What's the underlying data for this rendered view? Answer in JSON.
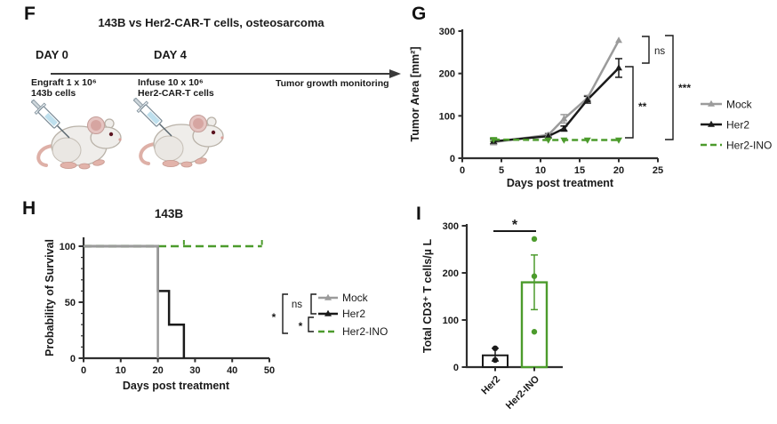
{
  "panels": {
    "f": {
      "letter": "F",
      "title": "143B vs Her2-CAR-T cells, osteosarcoma",
      "day0_label": "DAY 0",
      "day4_label": "DAY 4",
      "day0_caption": [
        "Engraft 1 x 10⁶",
        "143b cells"
      ],
      "day4_caption": [
        "Infuse 10 x 10⁶",
        "Her2-CAR-T cells"
      ],
      "monitoring_caption": "Tumor growth monitoring",
      "syringe_day0_liquid": "#e9bcc4",
      "syringe_day4_liquid": "#bfe0ee"
    },
    "g": {
      "letter": "G"
    },
    "h": {
      "letter": "H"
    },
    "i": {
      "letter": "I"
    }
  },
  "colors": {
    "mock": "#9b9b9b",
    "her2": "#1a1a1a",
    "her2_ino": "#4c9b2c",
    "axis": "#2f2f2f"
  },
  "chart_data": [
    {
      "panel": "G",
      "type": "line",
      "title": "",
      "xlabel": "Days post treatment",
      "ylabel": "Tumor Area [mm²]",
      "xlim": [
        0,
        25
      ],
      "ylim": [
        0,
        300
      ],
      "xticks": [
        0,
        5,
        10,
        15,
        20,
        25
      ],
      "yticks": [
        0,
        100,
        200,
        300
      ],
      "x": [
        4,
        11,
        13,
        16,
        20
      ],
      "series": [
        {
          "name": "Mock",
          "color": "#9b9b9b",
          "style": "solid",
          "marker": "triangle-up",
          "values": [
            38,
            55,
            93,
            142,
            278
          ],
          "errors": [
            6,
            4,
            10,
            6,
            0
          ]
        },
        {
          "name": "Her2",
          "color": "#1a1a1a",
          "style": "solid",
          "marker": "triangle-up",
          "values": [
            40,
            52,
            70,
            138,
            213
          ],
          "errors": [
            6,
            4,
            6,
            8,
            22
          ]
        },
        {
          "name": "Her2-INO",
          "color": "#4c9b2c",
          "style": "dashed",
          "marker": "triangle-down",
          "values": [
            44,
            43,
            43,
            43,
            43
          ],
          "errors": [
            4,
            0,
            0,
            0,
            0
          ]
        }
      ],
      "significance": [
        {
          "label": "ns",
          "between": [
            "Mock",
            "Her2"
          ]
        },
        {
          "label": "**",
          "between": [
            "Her2",
            "Her2-INO"
          ]
        },
        {
          "label": "***",
          "between": [
            "Mock",
            "Her2-INO"
          ]
        }
      ],
      "legend": [
        "Mock",
        "Her2",
        "Her2-INO"
      ],
      "legend_position": "right",
      "grid": false
    },
    {
      "panel": "H",
      "type": "line",
      "subtype": "kaplan-meier",
      "title": "143B",
      "xlabel": "Days post treatment",
      "ylabel": "Probability of Survival",
      "xlim": [
        0,
        50
      ],
      "ylim": [
        0,
        100
      ],
      "xticks": [
        0,
        10,
        20,
        30,
        40,
        50
      ],
      "yticks": [
        0,
        50,
        100
      ],
      "series": [
        {
          "name": "Mock",
          "color": "#9b9b9b",
          "style": "solid",
          "steps": [
            [
              0,
              100
            ],
            [
              20,
              100
            ],
            [
              20,
              0
            ]
          ]
        },
        {
          "name": "Her2",
          "color": "#1a1a1a",
          "style": "solid",
          "steps": [
            [
              0,
              100
            ],
            [
              20,
              100
            ],
            [
              20,
              60
            ],
            [
              23,
              60
            ],
            [
              23,
              30
            ],
            [
              27,
              30
            ],
            [
              27,
              0
            ]
          ]
        },
        {
          "name": "Her2-INO",
          "color": "#4c9b2c",
          "style": "dashed",
          "steps": [
            [
              0,
              100
            ],
            [
              48,
              100
            ]
          ],
          "censor_marks": [
            27,
            48
          ]
        }
      ],
      "significance": [
        {
          "label": "ns",
          "between": [
            "Mock",
            "Her2"
          ]
        },
        {
          "label": "*",
          "between": [
            "Her2",
            "Her2-INO"
          ]
        },
        {
          "label": "*",
          "between": [
            "Mock",
            "Her2-INO"
          ]
        }
      ],
      "legend": [
        "Mock",
        "Her2",
        "Her2-INO"
      ],
      "legend_position": "right",
      "grid": false
    },
    {
      "panel": "I",
      "type": "bar",
      "subtype": "bar-scatter",
      "title": "",
      "xlabel": "",
      "ylabel": "Total CD3⁺ T cells/µ L",
      "ylim": [
        0,
        300
      ],
      "yticks": [
        0,
        100,
        200,
        300
      ],
      "categories": [
        "Her2",
        "Her2-INO"
      ],
      "bars": [
        {
          "name": "Her2",
          "color": "#1a1a1a",
          "mean": 25,
          "error_low": 13,
          "error_high": 40,
          "points": [
            15,
            40
          ]
        },
        {
          "name": "Her2-INO",
          "color": "#4c9b2c",
          "mean": 180,
          "error_low": 122,
          "error_high": 238,
          "points": [
            75,
            193,
            272
          ]
        }
      ],
      "significance": [
        {
          "label": "*",
          "between": [
            "Her2",
            "Her2-INO"
          ]
        }
      ],
      "grid": false
    }
  ]
}
